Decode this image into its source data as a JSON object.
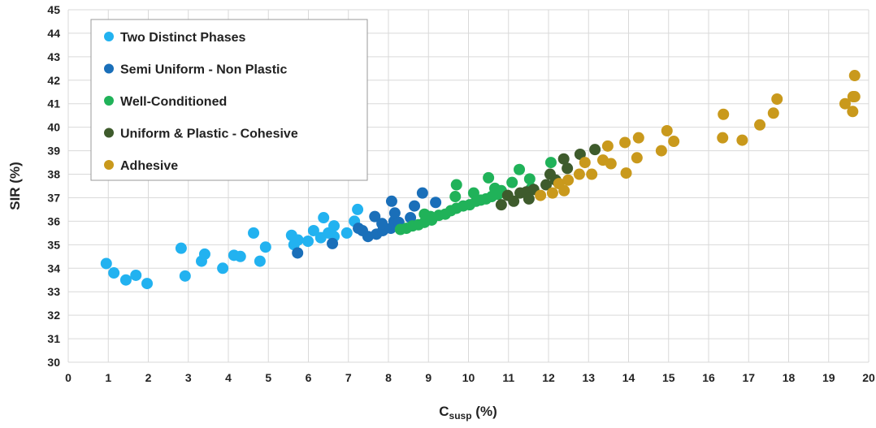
{
  "chart_data": {
    "type": "scatter",
    "xlabel": {
      "main": "C",
      "sub": "susp",
      "suffix": " (%)"
    },
    "ylabel": "SIR (%)",
    "xlim": [
      0,
      20
    ],
    "xticks": [
      0,
      1,
      2,
      3,
      4,
      5,
      6,
      7,
      8,
      9,
      10,
      11,
      12,
      13,
      14,
      15,
      16,
      17,
      18,
      19,
      20
    ],
    "ylim": [
      30,
      45
    ],
    "yticks": [
      30,
      31,
      32,
      33,
      34,
      35,
      36,
      37,
      38,
      39,
      40,
      41,
      42,
      43,
      44,
      45
    ],
    "grid": true,
    "legend": "upper left",
    "series": [
      {
        "name": "Two Distinct Phases",
        "color": "#22b2f0",
        "x": [
          0.95,
          1.14,
          1.44,
          1.69,
          1.97,
          2.82,
          2.92,
          3.33,
          3.41,
          3.86,
          4.14,
          4.3,
          4.63,
          4.79,
          4.93,
          5.58,
          5.64,
          5.74,
          5.99,
          6.13,
          6.31,
          6.38,
          6.5,
          6.64,
          6.64,
          6.96,
          7.15,
          7.23
        ],
        "y": [
          34.2,
          33.8,
          33.5,
          33.7,
          33.35,
          34.85,
          33.67,
          34.3,
          34.6,
          34.0,
          34.55,
          34.5,
          35.5,
          34.3,
          34.9,
          35.4,
          35.0,
          35.2,
          35.15,
          35.6,
          35.3,
          36.15,
          35.5,
          35.8,
          35.35,
          35.5,
          36.0,
          36.5
        ]
      },
      {
        "name": "Semi Uniform - Non Plastic",
        "color": "#1a6fb9",
        "x": [
          5.73,
          6.6,
          7.25,
          7.35,
          7.49,
          7.7,
          7.66,
          7.86,
          7.84,
          8.06,
          8.14,
          8.08,
          8.16,
          8.26,
          8.65,
          8.85,
          8.55,
          9.18
        ],
        "y": [
          34.65,
          35.05,
          35.7,
          35.6,
          35.35,
          35.45,
          36.2,
          35.6,
          35.9,
          35.7,
          36.0,
          36.85,
          36.35,
          35.95,
          36.65,
          37.2,
          36.15,
          36.8
        ]
      },
      {
        "name": "Well-Conditioned",
        "color": "#20b259",
        "x": [
          8.3,
          8.45,
          8.6,
          8.75,
          8.9,
          8.9,
          9.05,
          9.08,
          9.26,
          9.42,
          9.56,
          9.7,
          9.67,
          9.7,
          9.87,
          10.03,
          10.13,
          10.19,
          10.31,
          10.44,
          10.5,
          10.58,
          10.66,
          10.74,
          10.82,
          11.09,
          11.27,
          11.53,
          11.57,
          12.06
        ],
        "y": [
          35.65,
          35.7,
          35.8,
          35.85,
          35.95,
          36.3,
          36.2,
          36.05,
          36.25,
          36.3,
          36.45,
          36.55,
          37.05,
          37.55,
          36.65,
          36.7,
          37.2,
          36.85,
          36.9,
          36.95,
          37.85,
          37.05,
          37.4,
          37.15,
          37.3,
          37.65,
          38.2,
          37.8,
          37.4,
          38.5
        ]
      },
      {
        "name": "Uniform & Plastic - Cohesive",
        "color": "#3e5b2c",
        "x": [
          10.82,
          10.98,
          11.13,
          11.29,
          11.45,
          11.51,
          11.63,
          11.94,
          12.04,
          12.18,
          12.38,
          12.47,
          12.79,
          13.16
        ],
        "y": [
          36.7,
          37.1,
          36.85,
          37.2,
          37.25,
          36.95,
          37.35,
          37.55,
          38.0,
          37.75,
          38.65,
          38.25,
          38.85,
          39.05
        ]
      },
      {
        "name": "Adhesive",
        "color": "#c9991c",
        "x": [
          11.8,
          12.1,
          12.26,
          12.39,
          12.49,
          12.77,
          12.91,
          13.08,
          13.36,
          13.48,
          13.56,
          13.91,
          13.94,
          14.21,
          14.25,
          14.82,
          14.96,
          15.13,
          16.35,
          16.37,
          16.84,
          17.28,
          17.62,
          17.71,
          19.41,
          19.6,
          19.61,
          19.65,
          19.65
        ],
        "y": [
          37.1,
          37.2,
          37.6,
          37.3,
          37.75,
          38.0,
          38.5,
          38.0,
          38.6,
          39.2,
          38.45,
          39.35,
          38.05,
          38.7,
          39.55,
          39.0,
          39.85,
          39.4,
          39.55,
          40.55,
          39.45,
          40.1,
          40.6,
          41.2,
          41.0,
          40.67,
          41.3,
          41.3,
          42.2
        ]
      }
    ]
  }
}
